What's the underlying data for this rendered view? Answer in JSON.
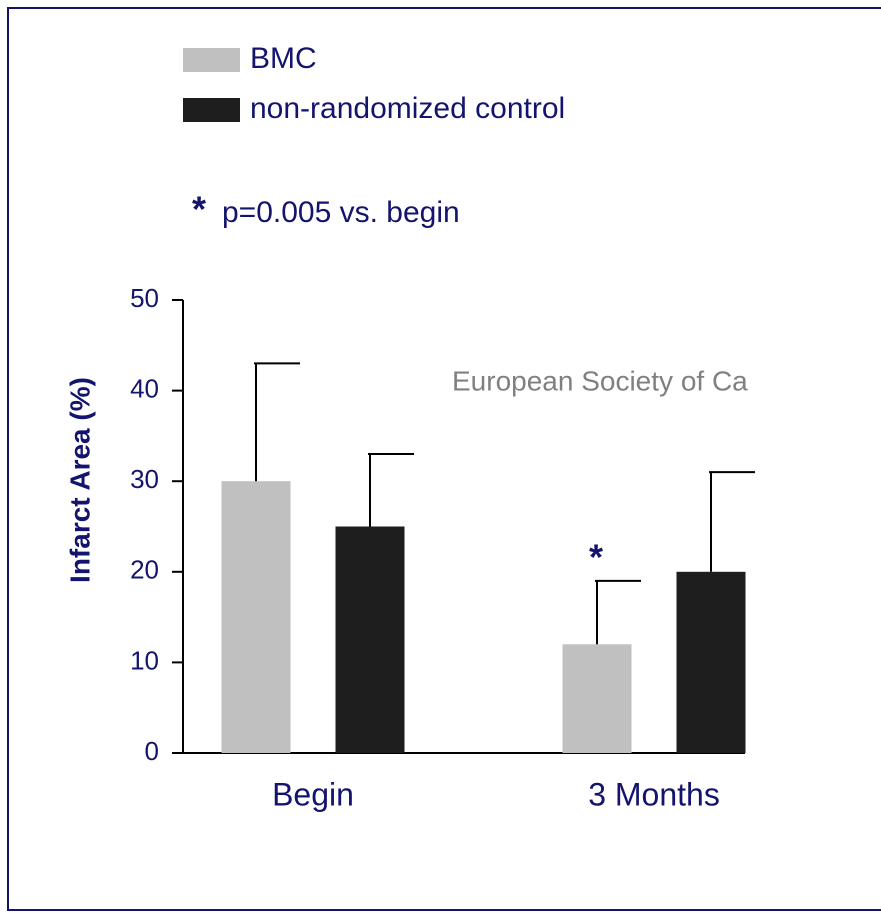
{
  "chart_data": {
    "type": "bar",
    "categories": [
      "Begin",
      "3 Months"
    ],
    "series": [
      {
        "name": "BMC",
        "color": "#c0c0c0",
        "values": [
          30,
          12
        ],
        "errors": [
          13,
          7
        ]
      },
      {
        "name": "non-randomized control",
        "color": "#1e1e1e",
        "values": [
          25,
          20
        ],
        "errors": [
          8,
          11
        ]
      }
    ],
    "y_axis_label": "Infarct Area (%)",
    "ylim": [
      0,
      50
    ],
    "yticks": [
      0,
      10,
      20,
      30,
      40,
      50
    ],
    "significance_marker": "*",
    "significance_note": "p=0.005 vs. begin",
    "watermark": "European Society of Ca",
    "grid": false
  }
}
